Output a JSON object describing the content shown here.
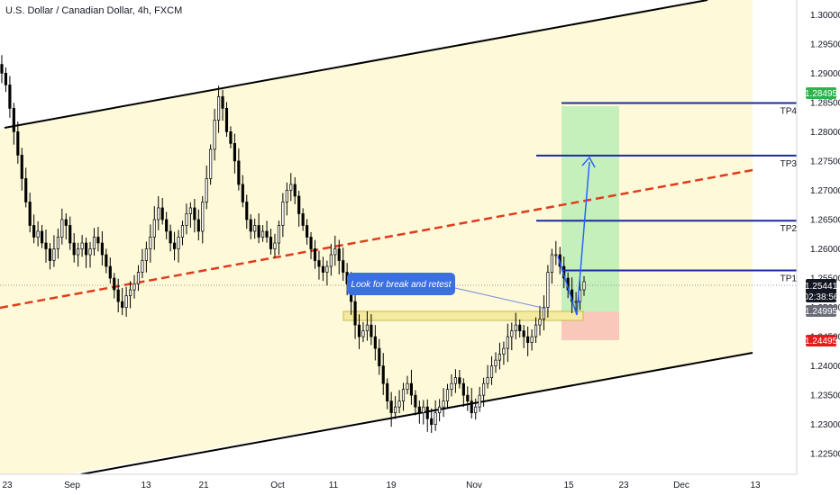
{
  "header": {
    "title": "U.S. Dollar / Canadian Dollar, 4h, FXCM"
  },
  "colors": {
    "background_channel": "#fdf9d9",
    "channel_line": "#000000",
    "midline": "#e03c1c",
    "level_line": "#1b2b9e",
    "target_zone": "#c6f0bb",
    "stop_zone": "#f9c8bb",
    "retest_box": "#f5eba0",
    "candle": "#000000",
    "projection_arrow": "#2962ff",
    "annotation_bg": "#3c6fe0",
    "price_badge_current": "#131722",
    "price_badge_stop": "#e51a1a",
    "price_badge_green": "#2fb24c",
    "price_badge_grey": "#6a6d78"
  },
  "price_axis": {
    "ticks": [
      "1.30000",
      "1.29500",
      "1.29000",
      "1.28500",
      "1.28000",
      "1.27500",
      "1.27000",
      "1.26500",
      "1.26000",
      "1.25500",
      "1.25000",
      "1.24500",
      "1.24000",
      "1.23500",
      "1.23000",
      "1.22500"
    ]
  },
  "time_axis": {
    "ticks": [
      "23",
      "Sep",
      "13",
      "21",
      "Oct",
      "11",
      "19",
      "Nov",
      "15",
      "23",
      "Dec",
      "13"
    ]
  },
  "levels": [
    {
      "name": "TP4",
      "price": "1.28490"
    },
    {
      "name": "TP3",
      "price": "1.27592"
    },
    {
      "name": "TP2",
      "price": "1.26481"
    },
    {
      "name": "TP1",
      "price": "1.25631"
    }
  ],
  "badges": {
    "top_green": "1.28495",
    "current_price": "1.25441",
    "countdown": "02:38:56",
    "entry": "1.24995",
    "stop": "1.24495"
  },
  "annotation": {
    "text": "Look for break and retest"
  },
  "chart_data": {
    "type": "candlestick",
    "symbol": "U.S. Dollar / Canadian Dollar, 4h, FXCM",
    "ylim": [
      1.2215,
      1.3025
    ],
    "closes": [
      1.29,
      1.288,
      1.284,
      1.28,
      1.276,
      1.272,
      1.268,
      1.264,
      1.262,
      1.263,
      1.261,
      1.26,
      1.258,
      1.26,
      1.262,
      1.265,
      1.264,
      1.261,
      1.259,
      1.26,
      1.261,
      1.259,
      1.26,
      1.262,
      1.261,
      1.259,
      1.257,
      1.255,
      1.253,
      1.251,
      1.25,
      1.252,
      1.253,
      1.254,
      1.256,
      1.258,
      1.26,
      1.262,
      1.265,
      1.267,
      1.265,
      1.263,
      1.261,
      1.26,
      1.262,
      1.264,
      1.266,
      1.267,
      1.265,
      1.263,
      1.268,
      1.272,
      1.277,
      1.282,
      1.286,
      1.284,
      1.28,
      1.278,
      1.275,
      1.271,
      1.268,
      1.265,
      1.263,
      1.264,
      1.262,
      1.263,
      1.262,
      1.26,
      1.261,
      1.264,
      1.268,
      1.27,
      1.271,
      1.269,
      1.266,
      1.264,
      1.262,
      1.26,
      1.258,
      1.257,
      1.256,
      1.257,
      1.259,
      1.26,
      1.258,
      1.256,
      1.254,
      1.251,
      1.247,
      1.245,
      1.246,
      1.247,
      1.245,
      1.243,
      1.24,
      1.237,
      1.234,
      1.232,
      1.233,
      1.234,
      1.236,
      1.237,
      1.235,
      1.233,
      1.232,
      1.233,
      1.231,
      1.23,
      1.232,
      1.233,
      1.234,
      1.236,
      1.237,
      1.238,
      1.237,
      1.235,
      1.234,
      1.232,
      1.233,
      1.235,
      1.237,
      1.238,
      1.24,
      1.241,
      1.242,
      1.243,
      1.245,
      1.246,
      1.247,
      1.246,
      1.245,
      1.244,
      1.245,
      1.247,
      1.248,
      1.25,
      1.256,
      1.259,
      1.259,
      1.257,
      1.255,
      1.253,
      1.251,
      1.251,
      1.253,
      1.2544
    ]
  }
}
